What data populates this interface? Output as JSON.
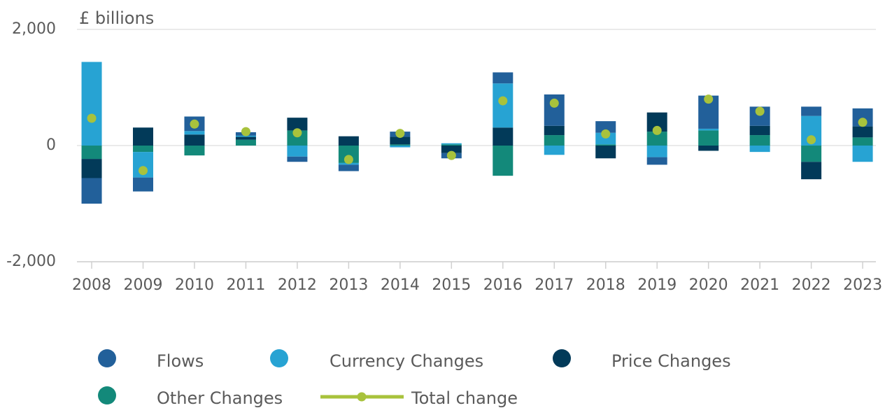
{
  "chart_data": {
    "type": "bar",
    "stacked": true,
    "y_label": "£ billions",
    "categories": [
      "2008",
      "2009",
      "2010",
      "2011",
      "2012",
      "2013",
      "2014",
      "2015",
      "2016",
      "2017",
      "2018",
      "2019",
      "2020",
      "2021",
      "2022",
      "2023"
    ],
    "series": [
      {
        "name": "Flows",
        "color": "#22609a",
        "values": [
          -440,
          -240,
          250,
          60,
          -90,
          -110,
          90,
          -90,
          190,
          540,
          200,
          -130,
          570,
          330,
          160,
          310
        ]
      },
      {
        "name": "Currency Changes",
        "color": "#27a3d3",
        "values": [
          1440,
          -440,
          60,
          20,
          -190,
          -30,
          -30,
          20,
          760,
          -160,
          200,
          -200,
          30,
          -110,
          510,
          -280
        ]
      },
      {
        "name": "Price Changes",
        "color": "#023a59",
        "values": [
          -330,
          310,
          190,
          50,
          220,
          160,
          130,
          -130,
          310,
          160,
          -220,
          330,
          -90,
          160,
          -300,
          190
        ]
      },
      {
        "name": "Other Changes",
        "color": "#13897a",
        "values": [
          -230,
          -110,
          -170,
          100,
          260,
          -300,
          20,
          20,
          -520,
          180,
          20,
          240,
          260,
          180,
          -280,
          140
        ]
      },
      {
        "name": "Total change",
        "type": "line",
        "color": "#a8c23c",
        "values": [
          470,
          -430,
          370,
          240,
          220,
          -240,
          210,
          -170,
          770,
          730,
          200,
          260,
          800,
          590,
          100,
          400
        ]
      }
    ],
    "ylim": [
      -2000,
      2000
    ],
    "yticks": [
      {
        "value": -2000,
        "label": "-2,000"
      },
      0,
      {
        "value": 2000,
        "label": "2,000"
      }
    ],
    "grid": true
  }
}
